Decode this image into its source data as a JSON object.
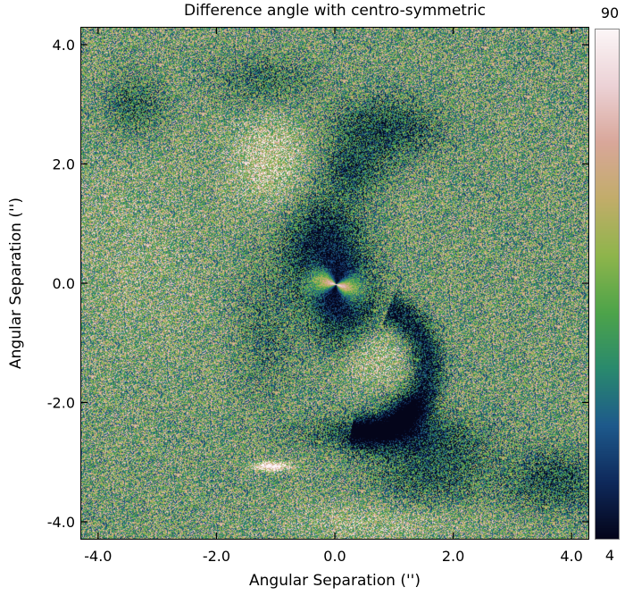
{
  "chart_data": {
    "type": "heatmap",
    "title": "Difference angle with centro-symmetric",
    "xlabel": "Angular Separation ('')",
    "ylabel": "Angular Separation ('')",
    "xlim": [
      -4.3,
      4.3
    ],
    "ylim": [
      -4.3,
      4.3
    ],
    "x_ticks": [
      -4.0,
      -2.0,
      0.0,
      2.0,
      4.0
    ],
    "y_ticks": [
      -4.0,
      -2.0,
      0.0,
      2.0,
      4.0
    ],
    "x_tick_labels": [
      "-4.0",
      "-2.0",
      "0.0",
      "2.0",
      "4.0"
    ],
    "y_tick_labels": [
      "-4.0",
      "-2.0",
      "0.0",
      "2.0",
      "4.0"
    ],
    "colorbar": {
      "min": 4,
      "max": 90,
      "min_label": "4",
      "max_label": "90",
      "colors": [
        "#04051a",
        "#0f2a5c",
        "#1e5a8c",
        "#2a8a6e",
        "#4ea44a",
        "#8fb54c",
        "#c2ad6a",
        "#d9a79a",
        "#ecd2d6",
        "#fcf6f7"
      ]
    },
    "grid": false
  }
}
